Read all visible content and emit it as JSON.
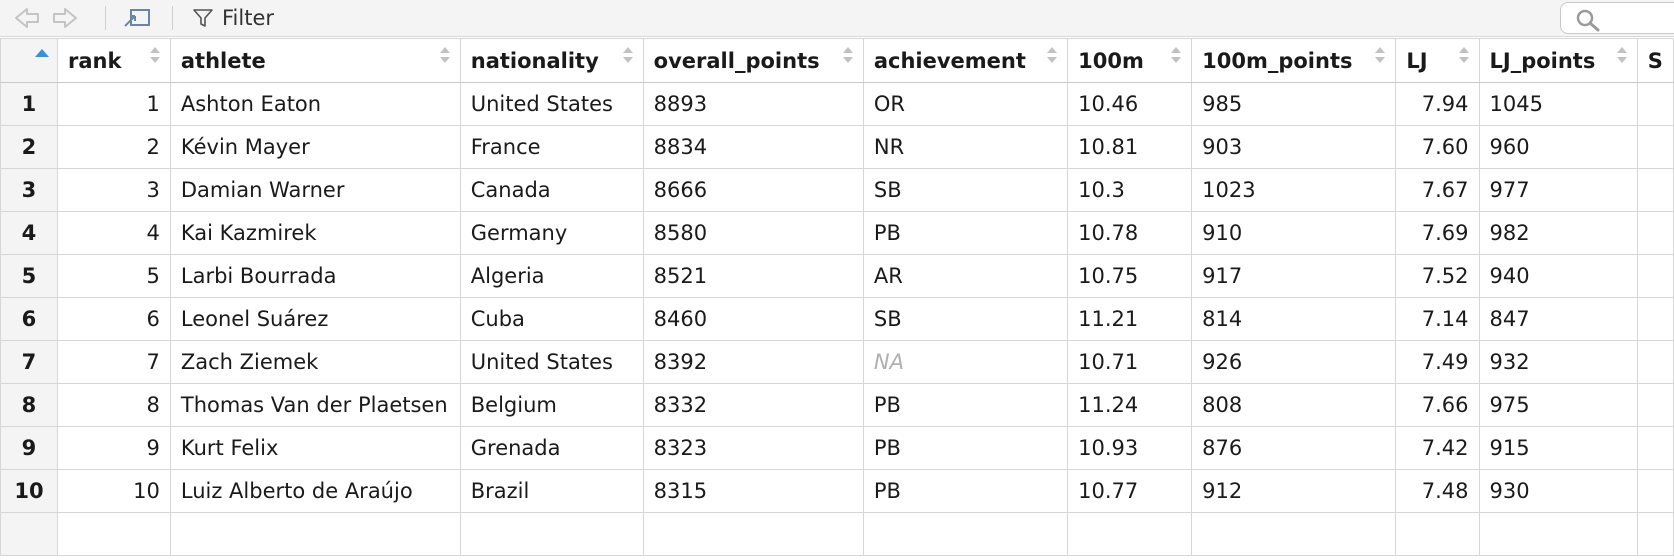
{
  "toolbar": {
    "filter_label": "Filter",
    "search_placeholder": ""
  },
  "table": {
    "columns": [
      "rank",
      "athlete",
      "nationality",
      "overall_points",
      "achievement",
      "100m",
      "100m_points",
      "LJ",
      "LJ_points",
      "S"
    ],
    "rows": [
      {
        "num": "1",
        "rank": "1",
        "athlete": "Ashton Eaton",
        "nationality": "United States",
        "overall_points": "8893",
        "achievement": "OR",
        "m100": "10.46",
        "m100_points": "985",
        "lj": "7.94",
        "lj_points": "1045"
      },
      {
        "num": "2",
        "rank": "2",
        "athlete": "Kévin Mayer",
        "nationality": "France",
        "overall_points": "8834",
        "achievement": "NR",
        "m100": "10.81",
        "m100_points": "903",
        "lj": "7.60",
        "lj_points": "960"
      },
      {
        "num": "3",
        "rank": "3",
        "athlete": "Damian Warner",
        "nationality": "Canada",
        "overall_points": "8666",
        "achievement": "SB",
        "m100": "10.3",
        "m100_points": "1023",
        "lj": "7.67",
        "lj_points": "977"
      },
      {
        "num": "4",
        "rank": "4",
        "athlete": "Kai Kazmirek",
        "nationality": "Germany",
        "overall_points": "8580",
        "achievement": "PB",
        "m100": "10.78",
        "m100_points": "910",
        "lj": "7.69",
        "lj_points": "982"
      },
      {
        "num": "5",
        "rank": "5",
        "athlete": "Larbi Bourrada",
        "nationality": "Algeria",
        "overall_points": "8521",
        "achievement": "AR",
        "m100": "10.75",
        "m100_points": "917",
        "lj": "7.52",
        "lj_points": "940"
      },
      {
        "num": "6",
        "rank": "6",
        "athlete": "Leonel Suárez",
        "nationality": "Cuba",
        "overall_points": "8460",
        "achievement": "SB",
        "m100": "11.21",
        "m100_points": "814",
        "lj": "7.14",
        "lj_points": "847"
      },
      {
        "num": "7",
        "rank": "7",
        "athlete": "Zach Ziemek",
        "nationality": "United States",
        "overall_points": "8392",
        "achievement": "NA",
        "m100": "10.71",
        "m100_points": "926",
        "lj": "7.49",
        "lj_points": "932"
      },
      {
        "num": "8",
        "rank": "8",
        "athlete": "Thomas Van der Plaetsen",
        "nationality": "Belgium",
        "overall_points": "8332",
        "achievement": "PB",
        "m100": "11.24",
        "m100_points": "808",
        "lj": "7.66",
        "lj_points": "975"
      },
      {
        "num": "9",
        "rank": "9",
        "athlete": "Kurt Felix",
        "nationality": "Grenada",
        "overall_points": "8323",
        "achievement": "PB",
        "m100": "10.93",
        "m100_points": "876",
        "lj": "7.42",
        "lj_points": "915"
      },
      {
        "num": "10",
        "rank": "10",
        "athlete": "Luiz Alberto de Araújo",
        "nationality": "Brazil",
        "overall_points": "8315",
        "achievement": "PB",
        "m100": "10.77",
        "m100_points": "912",
        "lj": "7.48",
        "lj_points": "930"
      }
    ]
  },
  "colors": {
    "sort_indicator_active": "#3a8fe0",
    "na_text": "#b0b0b0",
    "gutter_bg": "#f4f4f4",
    "grid_line": "#d6d6d6"
  }
}
